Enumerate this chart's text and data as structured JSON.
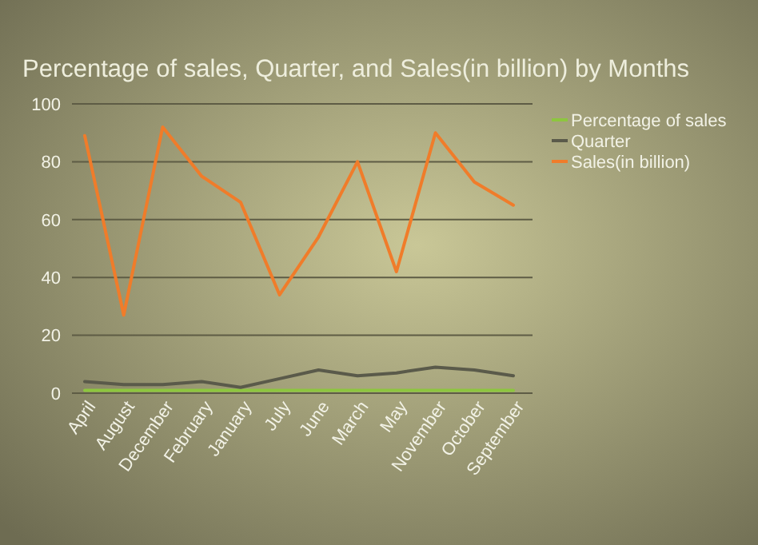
{
  "chart_data": {
    "type": "line",
    "title": "Percentage of sales, Quarter, and Sales(in billion) by Months",
    "categories": [
      "April",
      "August",
      "December",
      "February",
      "January",
      "July",
      "June",
      "March",
      "May",
      "November",
      "October",
      "September"
    ],
    "series": [
      {
        "name": "Percentage of sales",
        "color": "#8dc63f",
        "values": [
          1,
          1,
          1,
          1,
          1,
          1,
          1,
          1,
          1,
          1,
          1,
          1
        ]
      },
      {
        "name": "Quarter",
        "color": "#5a5a4a",
        "values": [
          4,
          3,
          3,
          4,
          2,
          5,
          8,
          6,
          7,
          9,
          8,
          6
        ]
      },
      {
        "name": "Sales(in billion)",
        "color": "#f07c2a",
        "values": [
          89,
          27,
          92,
          75,
          66,
          34,
          54,
          80,
          42,
          90,
          73,
          65
        ]
      }
    ],
    "ylim": [
      0,
      100
    ],
    "yticks": [
      0,
      20,
      40,
      60,
      80,
      100
    ],
    "grid": "y",
    "legend": "right",
    "marker": "none",
    "line_style": "solid"
  }
}
